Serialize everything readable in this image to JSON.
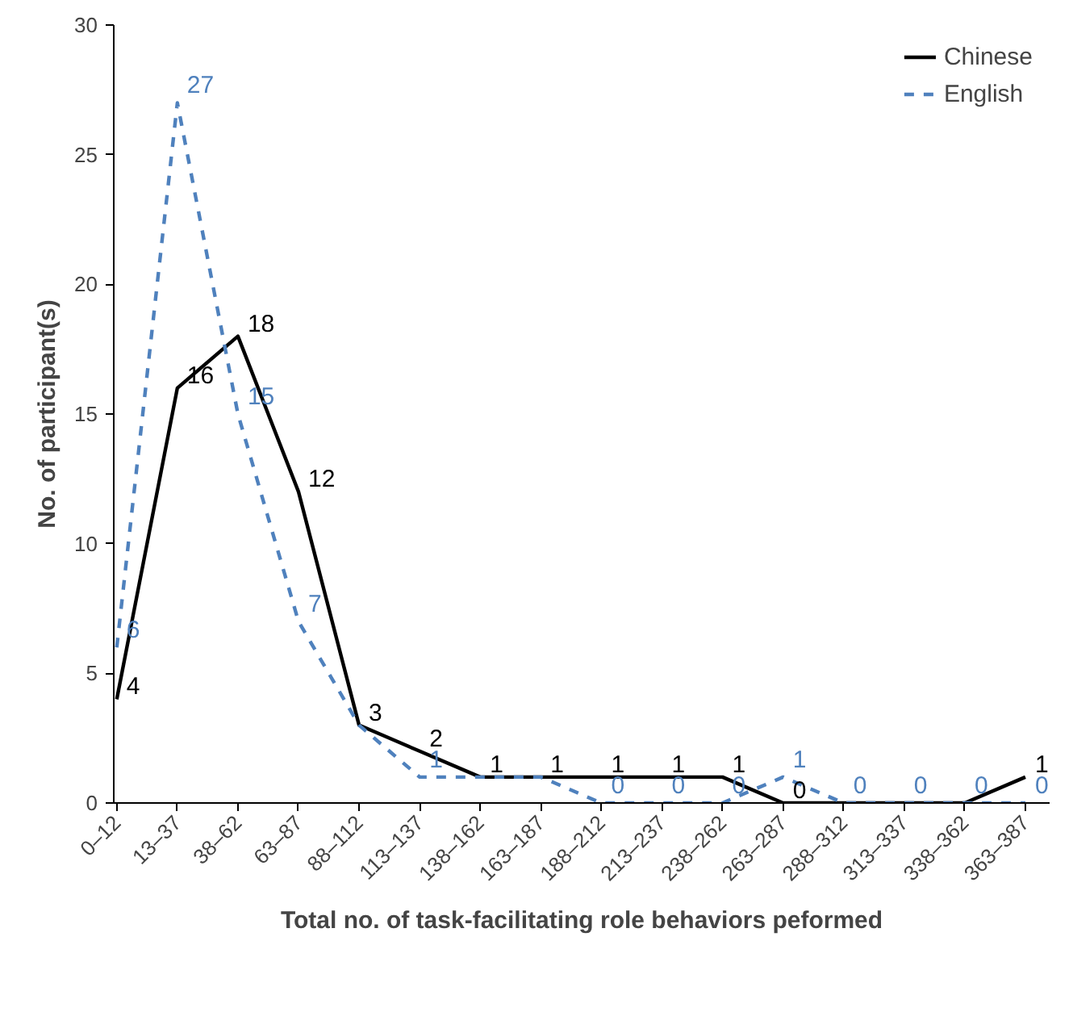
{
  "chart_data": {
    "type": "line",
    "xlabel": "Total no. of task-facilitating role behaviors peformed",
    "ylabel": "No. of participant(s)",
    "categories": [
      "0–12",
      "13–37",
      "38–62",
      "63–87",
      "88–112",
      "113–137",
      "138–162",
      "163–187",
      "188–212",
      "213–237",
      "238–262",
      "263–287",
      "288–312",
      "313–337",
      "338–362",
      "363–387"
    ],
    "series": [
      {
        "name": "Chinese",
        "color": "#000000",
        "line_style": "solid",
        "values": [
          4,
          16,
          18,
          12,
          3,
          2,
          1,
          1,
          1,
          1,
          1,
          0,
          0,
          0,
          0,
          1
        ],
        "value_labels": [
          "4",
          "16",
          "18",
          "12",
          "3",
          "2",
          "1",
          "1",
          "1",
          "1",
          "1",
          "0",
          null,
          null,
          null,
          "1"
        ]
      },
      {
        "name": "English",
        "color": "#4f81bd",
        "line_style": "dashed",
        "values": [
          6,
          27,
          15,
          7,
          3,
          1,
          1,
          1,
          0,
          0,
          0,
          1,
          0,
          0,
          0,
          0
        ],
        "value_labels": [
          "6",
          "27",
          "15",
          "7",
          null,
          "1",
          null,
          null,
          "0",
          "0",
          "0",
          "1",
          "0",
          "0",
          "0",
          "0"
        ]
      }
    ],
    "ylim": [
      0,
      30
    ],
    "yticks": [
      0,
      5,
      10,
      15,
      20,
      25,
      30
    ],
    "grid": false,
    "legend": "top right",
    "marker": "none"
  }
}
